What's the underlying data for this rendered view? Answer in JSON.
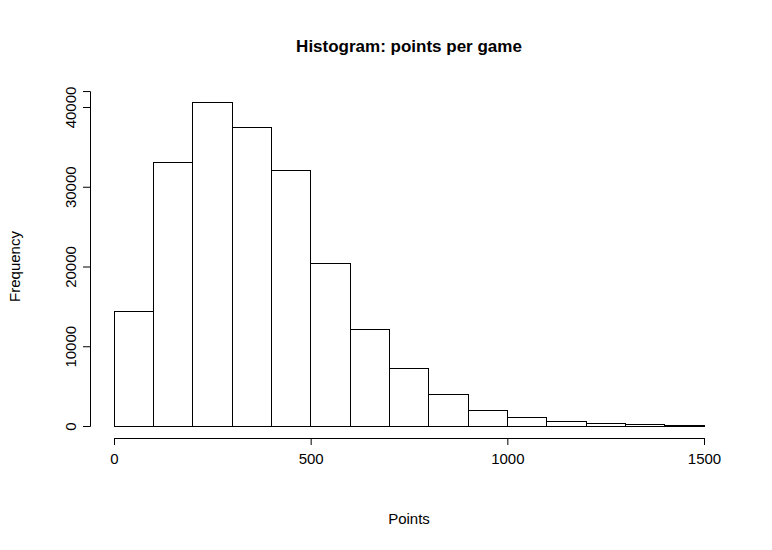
{
  "chart_data": {
    "type": "histogram",
    "title": "Histogram: points per game",
    "x_label": "Points",
    "y_label": "Frequency",
    "bins": [
      0,
      100,
      200,
      300,
      400,
      500,
      600,
      700,
      800,
      900,
      1000,
      1100,
      1200,
      1300,
      1400,
      1500
    ],
    "values": [
      14300,
      33100,
      40600,
      37400,
      32000,
      20400,
      12100,
      7200,
      3900,
      2000,
      1100,
      600,
      300,
      200,
      100
    ],
    "color": "#ffffff",
    "xlim": [
      0,
      1500
    ],
    "xticks": [
      0,
      500,
      1000,
      1500
    ],
    "ylim": [
      0,
      42000
    ],
    "yticks": [
      0,
      10000,
      20000,
      30000,
      40000
    ],
    "grid": false
  }
}
